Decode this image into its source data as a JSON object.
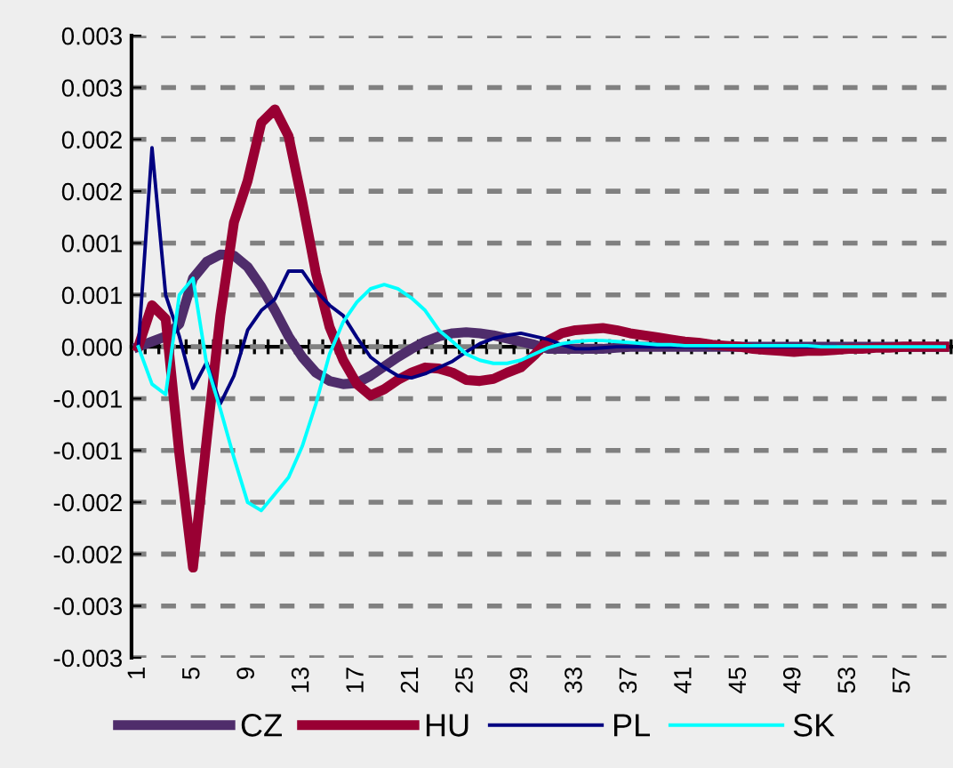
{
  "chart_data": {
    "type": "line",
    "categories": [
      "1",
      null,
      null,
      null,
      "5",
      null,
      null,
      null,
      "9",
      null,
      null,
      null,
      "13",
      null,
      null,
      null,
      "17",
      null,
      null,
      null,
      "21",
      null,
      null,
      null,
      "25",
      null,
      null,
      null,
      "29",
      null,
      null,
      null,
      "33",
      null,
      null,
      null,
      "37",
      null,
      null,
      null,
      "41",
      null,
      null,
      null,
      "45",
      null,
      null,
      null,
      "49",
      null,
      null,
      null,
      "53",
      null,
      null,
      null,
      "57",
      null,
      null,
      null
    ],
    "series": [
      {
        "name": "CZ",
        "color": "#4f2d6b",
        "values": [
          0,
          5e-05,
          0.0001,
          0.00022,
          0.00066,
          0.00082,
          0.00089,
          0.00088,
          0.00077,
          0.00058,
          0.00035,
          0.0001,
          -0.0001,
          -0.00025,
          -0.00033,
          -0.00036,
          -0.00035,
          -0.00028,
          -0.00019,
          -0.0001,
          -2e-05,
          5e-05,
          0.0001,
          0.00013,
          0.00014,
          0.00013,
          0.00011,
          8e-05,
          5e-05,
          2e-05,
          -2e-05,
          -2e-05,
          -2e-05,
          -2e-05,
          -2e-05,
          -1e-05,
          0,
          0,
          0,
          0,
          0,
          0,
          0,
          0,
          0,
          0,
          0,
          0,
          0,
          0,
          0,
          0,
          0,
          0,
          0,
          0,
          0,
          0,
          0,
          0
        ]
      },
      {
        "name": "HU",
        "color": "#990033",
        "values": [
          0,
          0.0004,
          0.00027,
          -0.00103,
          -0.00213,
          -0.0009,
          0.0003,
          0.0012,
          0.0016,
          0.00216,
          0.00229,
          0.00203,
          0.0014,
          0.00071,
          0.00019,
          -0.00013,
          -0.00036,
          -0.00047,
          -0.00041,
          -0.00032,
          -0.00025,
          -0.0002,
          -0.00021,
          -0.00025,
          -0.00032,
          -0.00033,
          -0.00031,
          -0.00025,
          -0.0002,
          -8e-05,
          6e-05,
          0.00013,
          0.00016,
          0.00017,
          0.00018,
          0.00016,
          0.00013,
          0.00011,
          9e-05,
          7e-05,
          5e-05,
          4e-05,
          2e-05,
          1e-05,
          0,
          -2e-05,
          -3e-05,
          -4e-05,
          -5e-05,
          -4e-05,
          -4e-05,
          -3e-05,
          -2e-05,
          -2e-05,
          -1e-05,
          -1e-05,
          0,
          0,
          0,
          0
        ]
      },
      {
        "name": "PL",
        "color": "#000080",
        "values": [
          0,
          0.00192,
          0.0005,
          0.0001,
          -0.0004,
          -0.00015,
          -0.00055,
          -0.00028,
          0.00016,
          0.00035,
          0.00046,
          0.00073,
          0.00073,
          0.00054,
          0.0004,
          0.0003,
          9e-05,
          -0.0001,
          -0.0002,
          -0.00028,
          -0.0003,
          -0.00026,
          -0.0002,
          -0.00014,
          -5e-05,
          3e-05,
          8e-05,
          0.00011,
          0.00013,
          0.0001,
          7e-05,
          2e-05,
          -2e-05,
          -2e-05,
          -1e-05,
          0,
          0,
          0,
          0,
          0,
          0,
          0,
          0,
          0,
          0,
          0,
          0,
          0,
          0,
          0,
          0,
          0,
          null,
          null,
          null,
          null,
          null,
          null,
          null,
          null
        ]
      },
      {
        "name": "SK",
        "color": "#00ffff",
        "values": [
          0,
          -0.00036,
          -0.00046,
          0.0005,
          0.00066,
          -0.00017,
          -0.0006,
          -0.00107,
          -0.0015,
          -0.00158,
          -0.00142,
          -0.00126,
          -0.00096,
          -0.00055,
          -7e-05,
          0.00024,
          0.00043,
          0.00056,
          0.0006,
          0.00056,
          0.00047,
          0.00035,
          0.00016,
          5e-05,
          -7e-05,
          -0.00013,
          -0.00016,
          -0.00016,
          -0.00013,
          -7e-05,
          -1e-05,
          3e-05,
          5e-05,
          6e-05,
          6e-05,
          5e-05,
          4e-05,
          3e-05,
          2e-05,
          2e-05,
          1e-05,
          1e-05,
          1e-05,
          1e-05,
          1e-05,
          1e-05,
          1e-05,
          1e-05,
          1e-05,
          1e-05,
          0,
          0,
          0,
          0,
          0,
          0,
          0,
          0,
          0,
          0
        ]
      }
    ],
    "ylim": [
      -0.003,
      0.003
    ],
    "yticks": [
      {
        "value": -0.003,
        "label": "-0.003"
      },
      {
        "value": -0.0025,
        "label": "-0.003"
      },
      {
        "value": -0.002,
        "label": "-0.002"
      },
      {
        "value": -0.0015,
        "label": "-0.002"
      },
      {
        "value": -0.001,
        "label": "-0.001"
      },
      {
        "value": -0.0005,
        "label": "-0.001"
      },
      {
        "value": 0,
        "label": "0.000"
      },
      {
        "value": 0.0005,
        "label": "0.001"
      },
      {
        "value": 0.001,
        "label": "0.001"
      },
      {
        "value": 0.0015,
        "label": "0.002"
      },
      {
        "value": 0.002,
        "label": "0.002"
      },
      {
        "value": 0.0025,
        "label": "0.003"
      },
      {
        "value": 0.003,
        "label": "0.003"
      }
    ],
    "grid": "y",
    "legend": "bottom",
    "marker": "none",
    "line_style": "solid"
  }
}
